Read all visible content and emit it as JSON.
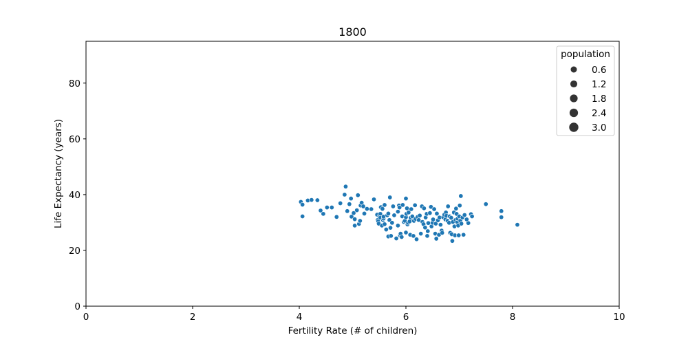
{
  "chart_data": {
    "type": "scatter",
    "title": "1800",
    "xlabel": "Fertility Rate (# of children)",
    "ylabel": "Life Expectancy (years)",
    "xlim": [
      0,
      10
    ],
    "ylim": [
      0,
      95
    ],
    "xticks": [
      "0",
      "2",
      "4",
      "6",
      "8",
      "10"
    ],
    "yticks": [
      "0",
      "20",
      "40",
      "60",
      "80"
    ],
    "grid": false,
    "marker_color": "#1f77b4",
    "legend": {
      "title": "population",
      "placement": "upper-right",
      "entries": [
        "0.6",
        "1.2",
        "1.8",
        "2.4",
        "3.0"
      ]
    },
    "points": [
      [
        4.03,
        37.4
      ],
      [
        4.06,
        36.4
      ],
      [
        4.06,
        32.2
      ],
      [
        4.16,
        37.9
      ],
      [
        4.23,
        38.1
      ],
      [
        4.34,
        38.0
      ],
      [
        4.4,
        34.3
      ],
      [
        4.45,
        33.1
      ],
      [
        4.52,
        35.4
      ],
      [
        4.61,
        35.4
      ],
      [
        4.7,
        32.0
      ],
      [
        4.77,
        36.9
      ],
      [
        4.85,
        40.0
      ],
      [
        4.87,
        42.9
      ],
      [
        4.9,
        34.1
      ],
      [
        4.94,
        36.6
      ],
      [
        4.97,
        38.6
      ],
      [
        4.98,
        32.1
      ],
      [
        5.02,
        33.4
      ],
      [
        5.04,
        28.9
      ],
      [
        5.04,
        31.2
      ],
      [
        5.08,
        34.4
      ],
      [
        5.1,
        39.8
      ],
      [
        5.12,
        29.5
      ],
      [
        5.14,
        30.6
      ],
      [
        5.15,
        36.1
      ],
      [
        5.17,
        37.1
      ],
      [
        5.2,
        35.8
      ],
      [
        5.22,
        33.2
      ],
      [
        5.27,
        34.9
      ],
      [
        5.35,
        34.8
      ],
      [
        5.4,
        38.3
      ],
      [
        5.46,
        32.8
      ],
      [
        5.47,
        30.9
      ],
      [
        5.48,
        30.4
      ],
      [
        5.49,
        29.6
      ],
      [
        5.5,
        32.2
      ],
      [
        5.52,
        33.1
      ],
      [
        5.52,
        31.7
      ],
      [
        5.53,
        35.5
      ],
      [
        5.55,
        28.9
      ],
      [
        5.56,
        34.9
      ],
      [
        5.57,
        30.9
      ],
      [
        5.58,
        31.4
      ],
      [
        5.58,
        32.1
      ],
      [
        5.6,
        29.4
      ],
      [
        5.6,
        36.3
      ],
      [
        5.63,
        27.5
      ],
      [
        5.65,
        32.6
      ],
      [
        5.67,
        25.0
      ],
      [
        5.67,
        33.2
      ],
      [
        5.69,
        30.9
      ],
      [
        5.7,
        39.0
      ],
      [
        5.71,
        28.1
      ],
      [
        5.72,
        25.2
      ],
      [
        5.74,
        29.9
      ],
      [
        5.76,
        35.8
      ],
      [
        5.78,
        32.6
      ],
      [
        5.82,
        24.3
      ],
      [
        5.85,
        28.9
      ],
      [
        5.85,
        33.9
      ],
      [
        5.87,
        36.1
      ],
      [
        5.88,
        35.4
      ],
      [
        5.89,
        25.4
      ],
      [
        5.9,
        26.0
      ],
      [
        5.92,
        24.8
      ],
      [
        5.93,
        32.2
      ],
      [
        5.94,
        36.3
      ],
      [
        5.96,
        30.2
      ],
      [
        5.98,
        30.6
      ],
      [
        6.0,
        38.6
      ],
      [
        6.0,
        31.9
      ],
      [
        6.0,
        26.4
      ],
      [
        6.01,
        33.1
      ],
      [
        6.02,
        35.1
      ],
      [
        6.03,
        29.3
      ],
      [
        6.04,
        29.9
      ],
      [
        6.05,
        33.6
      ],
      [
        6.07,
        30.4
      ],
      [
        6.08,
        25.6
      ],
      [
        6.09,
        31.7
      ],
      [
        6.1,
        34.8
      ],
      [
        6.12,
        32.2
      ],
      [
        6.14,
        25.2
      ],
      [
        6.15,
        30.6
      ],
      [
        6.17,
        36.2
      ],
      [
        6.18,
        31.3
      ],
      [
        6.2,
        24.0
      ],
      [
        6.22,
        32.0
      ],
      [
        6.24,
        30.9
      ],
      [
        6.26,
        32.5
      ],
      [
        6.28,
        26.0
      ],
      [
        6.3,
        35.8
      ],
      [
        6.31,
        30.2
      ],
      [
        6.33,
        29.4
      ],
      [
        6.34,
        35.1
      ],
      [
        6.36,
        28.2
      ],
      [
        6.37,
        31.8
      ],
      [
        6.39,
        33.1
      ],
      [
        6.4,
        25.2
      ],
      [
        6.41,
        26.9
      ],
      [
        6.42,
        29.8
      ],
      [
        6.45,
        33.4
      ],
      [
        6.47,
        35.6
      ],
      [
        6.48,
        28.6
      ],
      [
        6.5,
        29.9
      ],
      [
        6.51,
        31.1
      ],
      [
        6.53,
        34.8
      ],
      [
        6.55,
        26.0
      ],
      [
        6.56,
        29.6
      ],
      [
        6.57,
        24.2
      ],
      [
        6.58,
        33.2
      ],
      [
        6.6,
        30.8
      ],
      [
        6.62,
        25.6
      ],
      [
        6.63,
        31.8
      ],
      [
        6.65,
        29.2
      ],
      [
        6.67,
        27.1
      ],
      [
        6.68,
        26.3
      ],
      [
        6.7,
        31.9
      ],
      [
        6.72,
        32.8
      ],
      [
        6.74,
        31.1
      ],
      [
        6.75,
        33.6
      ],
      [
        6.76,
        32.4
      ],
      [
        6.78,
        30.6
      ],
      [
        6.79,
        35.8
      ],
      [
        6.81,
        29.9
      ],
      [
        6.82,
        32.2
      ],
      [
        6.83,
        26.3
      ],
      [
        6.85,
        31.7
      ],
      [
        6.86,
        25.8
      ],
      [
        6.87,
        23.4
      ],
      [
        6.88,
        30.2
      ],
      [
        6.9,
        33.6
      ],
      [
        6.91,
        28.6
      ],
      [
        6.92,
        25.4
      ],
      [
        6.93,
        30.9
      ],
      [
        6.94,
        35.0
      ],
      [
        6.95,
        33.1
      ],
      [
        6.96,
        30.2
      ],
      [
        6.97,
        31.4
      ],
      [
        6.98,
        28.9
      ],
      [
        6.99,
        25.4
      ],
      [
        7.0,
        32.2
      ],
      [
        7.01,
        36.1
      ],
      [
        7.02,
        30.6
      ],
      [
        7.03,
        39.5
      ],
      [
        7.04,
        29.6
      ],
      [
        7.06,
        31.8
      ],
      [
        7.08,
        25.6
      ],
      [
        7.1,
        32.7
      ],
      [
        7.14,
        31.1
      ],
      [
        7.17,
        29.8
      ],
      [
        7.22,
        33.0
      ],
      [
        7.24,
        32.2
      ],
      [
        7.5,
        36.6
      ],
      [
        7.79,
        34.1
      ],
      [
        7.79,
        31.9
      ],
      [
        8.09,
        29.2
      ]
    ]
  }
}
